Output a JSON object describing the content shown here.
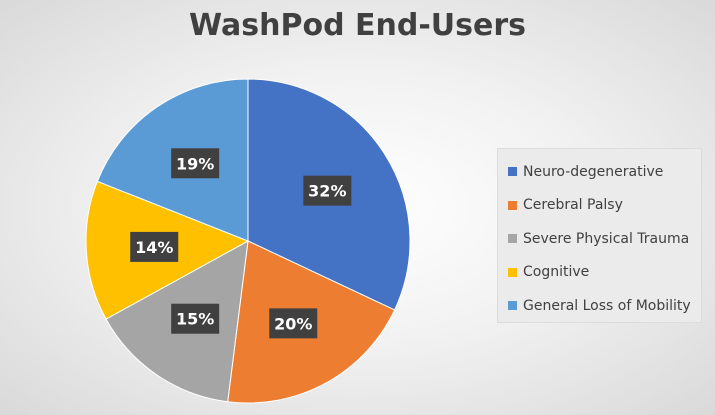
{
  "chart_data": {
    "type": "pie",
    "title": "WashPod End-Users",
    "legend_position": "right",
    "categories": [
      "Neuro-degenerative",
      "Cerebral Palsy",
      "Severe Physical Trauma",
      "Cognitive",
      "General Loss of Mobility"
    ],
    "values": [
      32,
      20,
      15,
      14,
      19
    ],
    "labels": [
      "32%",
      "20%",
      "15%",
      "14%",
      "19%"
    ],
    "colors": [
      "#4472C4",
      "#ED7D31",
      "#A5A5A5",
      "#FFC000",
      "#5B9BD5"
    ],
    "start_angle_deg": 0,
    "direction": "clockwise"
  }
}
